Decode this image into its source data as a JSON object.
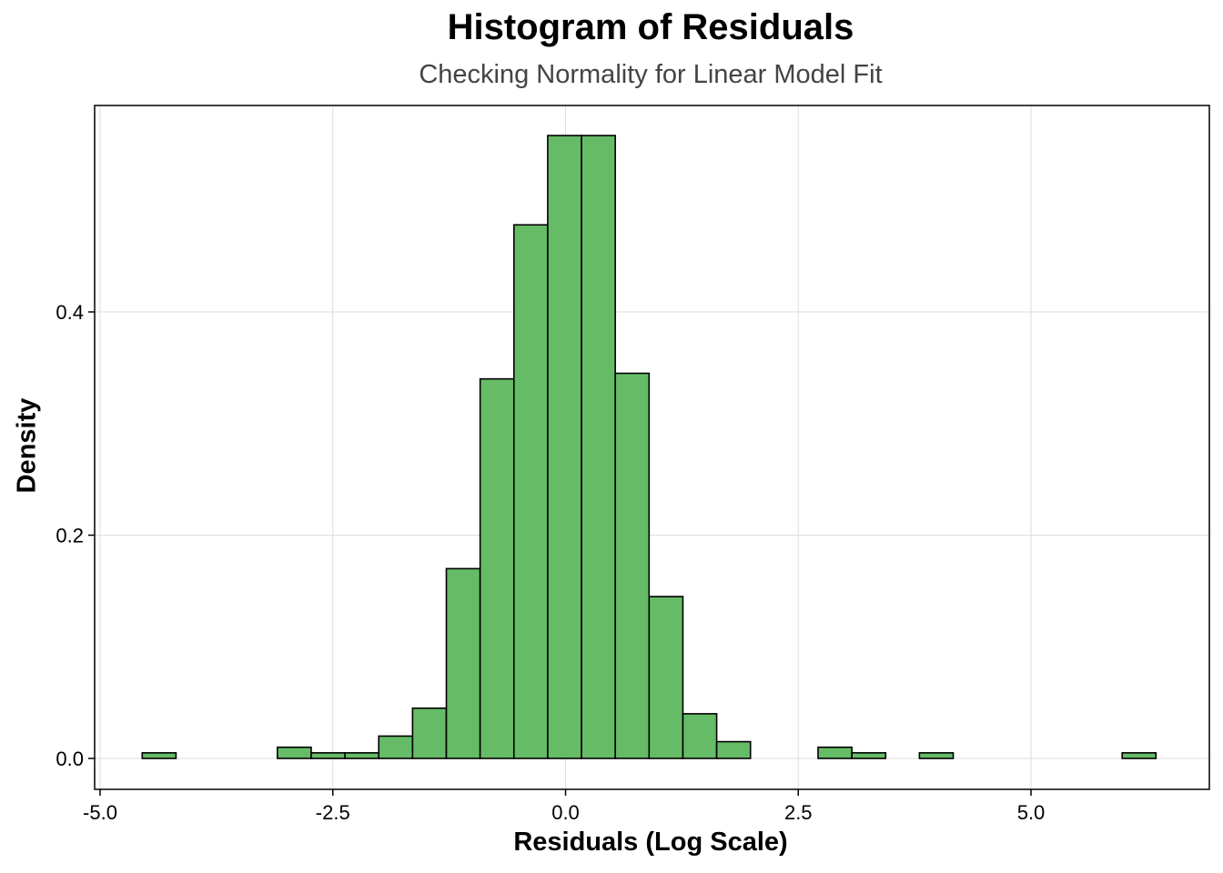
{
  "chart_data": {
    "type": "bar",
    "title": "Histogram of Residuals",
    "subtitle": "Checking Normality for Linear Model Fit",
    "xlabel": "Residuals (Log Scale)",
    "ylabel": "Density",
    "xlim": [
      -5.0,
      6.8
    ],
    "ylim": [
      -0.028,
      0.562
    ],
    "x_ticks": [
      -5.0,
      -2.5,
      0.0,
      2.5,
      5.0
    ],
    "x_tick_labels": [
      "-5.0",
      "-2.5",
      "0.0",
      "2.5",
      "5.0"
    ],
    "y_ticks": [
      0.0,
      0.2,
      0.4
    ],
    "y_tick_labels": [
      "0.0",
      "0.2",
      "0.4"
    ],
    "grid": true,
    "bin_width": 0.363,
    "bins": [
      {
        "x": -4.366,
        "density": 0.005
      },
      {
        "x": -4.003,
        "density": 0.0
      },
      {
        "x": -3.64,
        "density": 0.0
      },
      {
        "x": -3.277,
        "density": 0.0
      },
      {
        "x": -2.914,
        "density": 0.01
      },
      {
        "x": -2.551,
        "density": 0.005
      },
      {
        "x": -2.188,
        "density": 0.005
      },
      {
        "x": -1.825,
        "density": 0.02
      },
      {
        "x": -1.462,
        "density": 0.045
      },
      {
        "x": -1.099,
        "density": 0.17
      },
      {
        "x": -0.736,
        "density": 0.34
      },
      {
        "x": -0.373,
        "density": 0.478
      },
      {
        "x": -0.01,
        "density": 0.558
      },
      {
        "x": 0.353,
        "density": 0.558
      },
      {
        "x": 0.716,
        "density": 0.345
      },
      {
        "x": 1.079,
        "density": 0.145
      },
      {
        "x": 1.442,
        "density": 0.04
      },
      {
        "x": 1.805,
        "density": 0.015
      },
      {
        "x": 2.168,
        "density": 0.0
      },
      {
        "x": 2.531,
        "density": 0.0
      },
      {
        "x": 2.894,
        "density": 0.01
      },
      {
        "x": 3.257,
        "density": 0.005
      },
      {
        "x": 3.62,
        "density": 0.0
      },
      {
        "x": 3.983,
        "density": 0.005
      },
      {
        "x": 4.346,
        "density": 0.0
      },
      {
        "x": 4.709,
        "density": 0.0
      },
      {
        "x": 5.072,
        "density": 0.0
      },
      {
        "x": 5.435,
        "density": 0.0
      },
      {
        "x": 5.798,
        "density": 0.0
      },
      {
        "x": 6.161,
        "density": 0.005
      }
    ],
    "colors": {
      "bar_fill": "#66bb66",
      "bar_stroke": "#000000",
      "grid": "#dedede"
    }
  }
}
